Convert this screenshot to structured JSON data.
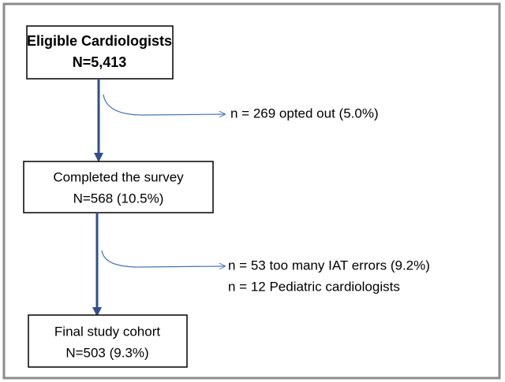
{
  "nodes": [
    {
      "lines": [
        "Eligible Cardiologists",
        "N=5,413"
      ]
    },
    {
      "lines": [
        "Completed the survey",
        "N=568 (10.5%)"
      ]
    },
    {
      "lines": [
        "Final study cohort",
        "N=503 (9.3%)"
      ]
    }
  ],
  "exclusions": [
    {
      "lines": [
        "n = 269 opted out (5.0%)"
      ]
    },
    {
      "lines": [
        "n = 53 too many IAT errors (9.2%)",
        "n = 12 Pediatric cardiologists"
      ]
    }
  ]
}
